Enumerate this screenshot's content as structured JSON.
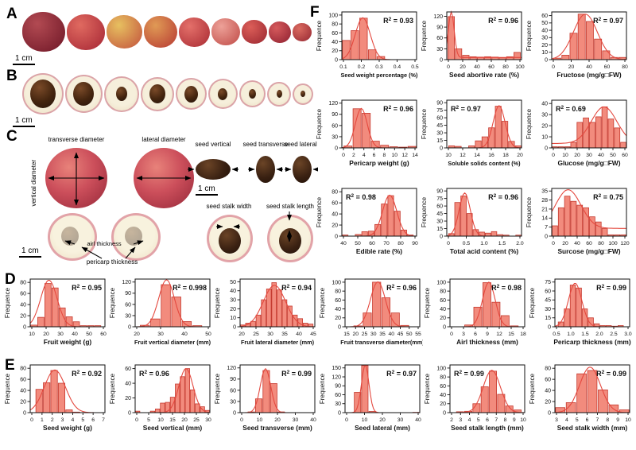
{
  "panels": {
    "a": "A",
    "b": "B",
    "c": "C",
    "d": "D",
    "e": "E",
    "f": "F"
  },
  "scales": {
    "a": "1 cm",
    "b": "1 cm"
  },
  "panelC": {
    "labels": {
      "vertical_diameter": "vertical diameter",
      "transverse_diameter": "transverse diameter",
      "lateral_diameter": "lateral diameter",
      "seed_vertical": "seed vertical",
      "seed_transverse": "seed transverse",
      "seed_lateral": "seed lateral",
      "seed_stalk_width": "seed stalk width",
      "seed_stalk_length": "seed stalk length",
      "airl_thickness": "airl thickness",
      "pericarp_thickness": "pericarp thickness",
      "scale_left": "1 cm",
      "scale_seed": "1 cm"
    }
  },
  "colors": {
    "bar_fill": "#f28b7d",
    "bar_edge": "#c5392e",
    "curve": "#e4493f",
    "axis": "#111111"
  },
  "chart_data": {
    "type": "histogram",
    "note": "frequency distribution histograms with fitted normal curves",
    "charts": {
      "fruit_weight": {
        "xlabel": "Fruit weight (g)",
        "ylabel": "Frequence",
        "r2": "0.95",
        "r2_pos": "right",
        "yticks": [
          0,
          20,
          40,
          60,
          80
        ],
        "ymax": 86,
        "xticks": [
          "10",
          "20",
          "30",
          "40",
          "50",
          "60"
        ],
        "bars": [
          3,
          17,
          78,
          70,
          34,
          18,
          9,
          2,
          2,
          2
        ],
        "bar_start": 0,
        "bar_end": 0.95,
        "curve": {
          "mu": 0.25,
          "sigma": 0.11,
          "amp": 84
        }
      },
      "fruit_vertical_diameter": {
        "xlabel": "Fruit vertical diameter (mm)",
        "ylabel": "Frequence",
        "r2": "0.998",
        "r2_pos": "right",
        "yticks": [
          0,
          30,
          60,
          90,
          120
        ],
        "ymax": 128,
        "xticks": [
          "20",
          "30",
          "40",
          "50"
        ],
        "bars": [
          4,
          21,
          113,
          80,
          14,
          3
        ],
        "bar_start": 0.06,
        "bar_end": 0.9,
        "curve": {
          "mu": 0.42,
          "sigma": 0.105,
          "amp": 126
        }
      },
      "fruit_lateral_diameter": {
        "xlabel": "Fruit lateral diameter (mm)",
        "ylabel": "Frequence",
        "r2": "0.94",
        "r2_pos": "right",
        "yticks": [
          0,
          10,
          20,
          30,
          40,
          50
        ],
        "ymax": 53,
        "xticks": [
          "20",
          "25",
          "30",
          "35",
          "40",
          "45"
        ],
        "bars": [
          2,
          4,
          6,
          13,
          30,
          42,
          49,
          41,
          30,
          23,
          13,
          9,
          4,
          3
        ],
        "bar_start": 0,
        "bar_end": 0.98,
        "curve": {
          "mu": 0.46,
          "sigma": 0.15,
          "amp": 46
        }
      },
      "fruit_transverse_diameter": {
        "xlabel": "Fruit transverse diameter(mm)",
        "ylabel": "Frequence",
        "r2": "0.96",
        "r2_pos": "right",
        "yticks": [
          0,
          20,
          40,
          60,
          80,
          100
        ],
        "ymax": 107,
        "xticks": [
          "15",
          "20",
          "25",
          "30",
          "35",
          "40",
          "45",
          "50",
          "55"
        ],
        "bars": [
          2,
          31,
          100,
          65,
          31,
          3
        ],
        "bar_start": 0.11,
        "bar_end": 0.86,
        "curve": {
          "mu": 0.44,
          "sigma": 0.1,
          "amp": 101
        }
      },
      "airl_thickness": {
        "xlabel": "Airl thickness (mm)",
        "ylabel": "Frequence",
        "r2": "0.98",
        "r2_pos": "right",
        "yticks": [
          0,
          20,
          40,
          60,
          80,
          100
        ],
        "ymax": 107,
        "xticks": [
          "0",
          "3",
          "6",
          "9",
          "12",
          "15",
          "18"
        ],
        "bars": [
          4,
          44,
          99,
          55,
          25,
          2
        ],
        "bar_start": 0.19,
        "bar_end": 0.92,
        "curve": {
          "mu": 0.52,
          "sigma": 0.085,
          "amp": 100
        }
      },
      "pericarp_thickness": {
        "xlabel": "Pericarp thickness (mm)",
        "ylabel": "Frequence",
        "r2": "0.99",
        "r2_pos": "right",
        "yticks": [
          0,
          15,
          30,
          45,
          60,
          75
        ],
        "ymax": 80,
        "xticks": [
          "0.5",
          "1.0",
          "1.5",
          "2.0",
          "2.5",
          "3.0"
        ],
        "bars": [
          8,
          30,
          70,
          65,
          30,
          15,
          5,
          2,
          2,
          1,
          2
        ],
        "bar_start": 0.04,
        "bar_end": 0.92,
        "curve": {
          "mu": 0.27,
          "sigma": 0.09,
          "amp": 73
        }
      },
      "seed_weight": {
        "xlabel": "Seed weight (g)",
        "ylabel": "Frequence",
        "r2": "0.92",
        "r2_pos": "right",
        "yticks": [
          0,
          20,
          40,
          60,
          80
        ],
        "ymax": 86,
        "xticks": [
          "0",
          "1",
          "2",
          "3",
          "4",
          "5",
          "6",
          "7"
        ],
        "bars": [
          42,
          54,
          76,
          53,
          5,
          1
        ],
        "bar_start": 0.07,
        "bar_end": 0.67,
        "curve": {
          "mu": 0.33,
          "sigma": 0.14,
          "amp": 77
        }
      },
      "seed_vertical": {
        "xlabel": "Seed vertical (mm)",
        "ylabel": "Frequence",
        "r2": "0.96",
        "r2_pos": "left",
        "yticks": [
          0,
          20,
          40,
          60
        ],
        "ymax": 65,
        "xticks": [
          "0",
          "5",
          "10",
          "15",
          "20",
          "25",
          "30"
        ],
        "bars": [
          2,
          0,
          0,
          2,
          5,
          13,
          14,
          21,
          39,
          49,
          60,
          31,
          12,
          8,
          3
        ],
        "bar_start": 0,
        "bar_end": 1,
        "curve": {
          "mu": 0.68,
          "sigma": 0.095,
          "amp": 60
        }
      },
      "seed_transverse": {
        "xlabel": "Seed transverse (mm)",
        "ylabel": "Frequence",
        "r2": "0.99",
        "r2_pos": "right",
        "yticks": [
          0,
          30,
          60,
          90,
          120
        ],
        "ymax": 128,
        "xticks": [
          "0",
          "10",
          "20",
          "30",
          "40"
        ],
        "bars": [
          2,
          37,
          113,
          78,
          2
        ],
        "bar_start": 0.1,
        "bar_end": 0.6,
        "curve": {
          "mu": 0.34,
          "sigma": 0.07,
          "amp": 118
        }
      },
      "seed_lateral": {
        "xlabel": "Seed lateral (mm)",
        "ylabel": "Frequence",
        "r2": "0.97",
        "r2_pos": "right",
        "yticks": [
          0,
          30,
          60,
          90,
          120,
          150
        ],
        "ymax": 160,
        "xticks": [
          "0",
          "10",
          "20",
          "30",
          "40"
        ],
        "bars": [
          0,
          68,
          158,
          4,
          0,
          0,
          0,
          0,
          0,
          1
        ],
        "bar_start": 0.02,
        "bar_end": 1,
        "curve": {
          "mu": 0.27,
          "sigma": 0.05,
          "amp": 160
        }
      },
      "seed_stalk_length": {
        "xlabel": "Seed stalk length (mm)",
        "ylabel": "Frequence",
        "r2": "0.99",
        "r2_pos": "left",
        "yticks": [
          0,
          20,
          40,
          60,
          80,
          100
        ],
        "ymax": 107,
        "xticks": [
          "2",
          "3",
          "4",
          "5",
          "6",
          "7",
          "8",
          "9",
          "10"
        ],
        "bars": [
          2,
          3,
          20,
          58,
          93,
          41,
          15,
          6
        ],
        "bar_start": 0.08,
        "bar_end": 0.96,
        "curve": {
          "mu": 0.56,
          "sigma": 0.115,
          "amp": 95
        }
      },
      "seed_stalk_width": {
        "xlabel": "Seed stalk width (mm)",
        "ylabel": "Frequence",
        "r2": "0.99",
        "r2_pos": "right",
        "yticks": [
          0,
          20,
          40,
          60,
          80
        ],
        "ymax": 86,
        "xticks": [
          "3",
          "4",
          "5",
          "6",
          "7",
          "8",
          "9",
          "10"
        ],
        "bars": [
          9,
          18,
          70,
          76,
          41,
          14,
          5
        ],
        "bar_start": 0,
        "bar_end": 1,
        "curve": {
          "mu": 0.47,
          "sigma": 0.14,
          "amp": 82
        }
      },
      "seed_weight_percentage": {
        "xlabel": "Seed weight percentage (%)",
        "ylabel": "Frequence",
        "r2": "0.93",
        "r2_pos": "right",
        "yticks": [
          0,
          20,
          40,
          60,
          80,
          100
        ],
        "ymax": 107,
        "xticks": [
          "0.1",
          "0.2",
          "0.3",
          "0.4",
          "0.5"
        ],
        "bars": [
          43,
          65,
          93,
          22,
          7
        ],
        "bar_start": 0,
        "bar_end": 0.58,
        "curve": {
          "mu": 0.28,
          "sigma": 0.1,
          "amp": 94
        }
      },
      "seed_abortive_rate": {
        "xlabel": "Seed abortive rate (%)",
        "ylabel": "Frequence",
        "r2": "0.96",
        "r2_pos": "right",
        "yticks": [
          0,
          30,
          60,
          90,
          120
        ],
        "ymax": 132,
        "xticks": [
          "0",
          "20",
          "40",
          "60",
          "80",
          "100"
        ],
        "bars": [
          119,
          30,
          12,
          8,
          7,
          8,
          7,
          5,
          8,
          20
        ],
        "bar_start": 0.01,
        "bar_end": 0.99,
        "curve": {
          "mu": 0.06,
          "sigma": 0.038,
          "amp": 128,
          "base": 6
        }
      },
      "fructose": {
        "xlabel": "Fructose (mg/g□FW)",
        "ylabel": "Frequence",
        "r2": "0.97",
        "r2_pos": "right",
        "yticks": [
          0,
          10,
          20,
          30,
          40,
          50,
          60
        ],
        "ymax": 65,
        "xticks": [
          "0",
          "20",
          "40",
          "60",
          "80"
        ],
        "bars": [
          2,
          6,
          36,
          62,
          52,
          28,
          12,
          3,
          3
        ],
        "bar_start": 0.02,
        "bar_end": 1,
        "curve": {
          "mu": 0.45,
          "sigma": 0.16,
          "amp": 62
        }
      },
      "pericarp_weight": {
        "xlabel": "Pericarp weight (g)",
        "ylabel": "Frequence",
        "r2": "0.96",
        "r2_pos": "right",
        "yticks": [
          0,
          30,
          60,
          90,
          120
        ],
        "ymax": 128,
        "xticks": [
          "0",
          "2",
          "4",
          "6",
          "8",
          "10",
          "12",
          "14"
        ],
        "bars": [
          5,
          105,
          93,
          18,
          7,
          3,
          2,
          4
        ],
        "bar_start": 0.02,
        "bar_end": 1,
        "curve": {
          "mu": 0.26,
          "sigma": 0.08,
          "amp": 106
        }
      },
      "soluble_solids_content": {
        "xlabel": "Soluble solids content (%)",
        "ylabel": "Frequence",
        "r2": "0.97",
        "r2_pos": "left",
        "yticks": [
          0,
          15,
          30,
          45,
          60,
          75,
          90
        ],
        "ymax": 95,
        "xticks": [
          "10",
          "12",
          "14",
          "16",
          "18",
          "20"
        ],
        "bars": [
          4,
          3,
          0,
          4,
          14,
          22,
          40,
          83,
          53,
          13,
          4
        ],
        "bar_start": 0.02,
        "bar_end": 1,
        "curve": {
          "mu": 0.7,
          "sigma": 0.08,
          "amp": 84
        }
      },
      "glucose": {
        "xlabel": "Glucose (mg/g□FW)",
        "ylabel": "Frequence",
        "r2": "0.69",
        "r2_pos": "left",
        "yticks": [
          0,
          10,
          20,
          30,
          40
        ],
        "ymax": 43,
        "xticks": [
          "0",
          "10",
          "20",
          "30",
          "40",
          "50",
          "60"
        ],
        "bars": [
          1,
          1,
          1,
          5,
          23,
          27,
          23,
          28,
          37,
          26,
          18,
          5
        ],
        "bar_start": 0,
        "bar_end": 1,
        "curve": {
          "mu": 0.7,
          "sigma": 0.17,
          "amp": 33,
          "base": 4
        }
      },
      "edible_rate": {
        "xlabel": "Edible rate (%)",
        "ylabel": "Frequence",
        "r2": "0.98",
        "r2_pos": "left",
        "yticks": [
          0,
          20,
          40,
          60,
          80
        ],
        "ymax": 86,
        "xticks": [
          "40",
          "50",
          "60",
          "70",
          "80",
          "90"
        ],
        "bars": [
          2,
          0,
          3,
          8,
          9,
          21,
          58,
          73,
          45,
          11,
          2
        ],
        "bar_start": 0,
        "bar_end": 0.96,
        "curve": {
          "mu": 0.64,
          "sigma": 0.095,
          "amp": 74
        }
      },
      "total_acid_content": {
        "xlabel": "Total acid content (%)",
        "ylabel": "Frequence",
        "r2": "0.96",
        "r2_pos": "right",
        "yticks": [
          0,
          15,
          30,
          45,
          60,
          75,
          90
        ],
        "ymax": 95,
        "xticks": [
          "0",
          "0.5",
          "1.0",
          "1.5",
          "2.0"
        ],
        "bars": [
          5,
          67,
          80,
          45,
          13,
          8,
          6,
          9,
          3,
          2,
          0,
          2
        ],
        "bar_start": 0.02,
        "bar_end": 1,
        "curve": {
          "mu": 0.24,
          "sigma": 0.075,
          "amp": 86
        }
      },
      "surcose": {
        "xlabel": "Surcose (mg/g□FW)",
        "ylabel": "Frequence",
        "r2": "0.75",
        "r2_pos": "right",
        "yticks": [
          0,
          7,
          14,
          21,
          28,
          35
        ],
        "ymax": 37,
        "xticks": [
          "0",
          "20",
          "40",
          "60",
          "80",
          "100",
          "120"
        ],
        "bars": [
          8,
          22,
          31,
          27,
          24,
          22,
          15,
          11,
          6,
          1,
          1,
          1
        ],
        "bar_start": 0,
        "bar_end": 1,
        "curve": {
          "mu": 0.22,
          "sigma": 0.17,
          "amp": 30,
          "base": 6
        }
      }
    }
  }
}
